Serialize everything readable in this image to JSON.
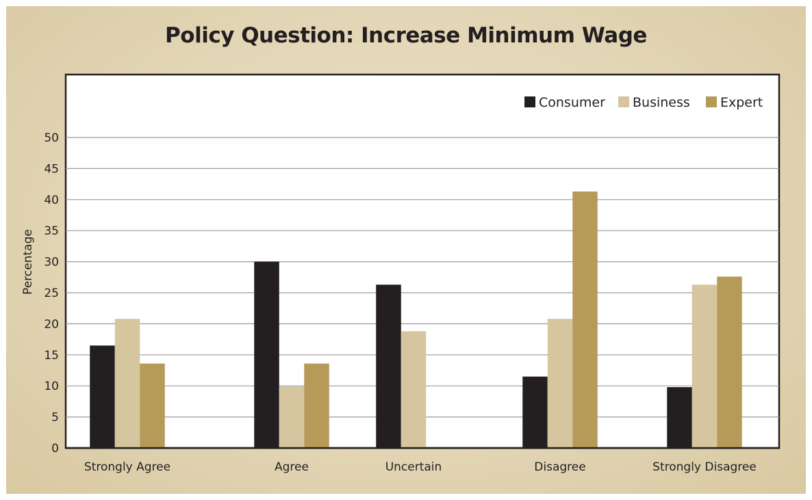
{
  "chart_data": {
    "type": "bar",
    "title": "Policy Question: Increase Minimum Wage",
    "xlabel": "",
    "ylabel": "Percentage",
    "ylim": [
      0,
      60
    ],
    "yticks": [
      0,
      5,
      10,
      15,
      20,
      25,
      30,
      35,
      40,
      45,
      50
    ],
    "grid": true,
    "legend_position": "top-right",
    "categories": [
      "Strongly Agree",
      "Agree",
      "Uncertain",
      "Disagree",
      "Strongly Disagree"
    ],
    "series": [
      {
        "name": "Consumer",
        "color": "#231f20",
        "values": [
          16.5,
          30,
          26.3,
          11.5,
          9.8
        ]
      },
      {
        "name": "Business",
        "color": "#d6c6a0",
        "values": [
          20.8,
          9.9,
          18.8,
          20.8,
          26.3
        ]
      },
      {
        "name": "Expert",
        "color": "#b59a58",
        "values": [
          13.6,
          13.6,
          0,
          41.3,
          27.6
        ]
      }
    ]
  }
}
